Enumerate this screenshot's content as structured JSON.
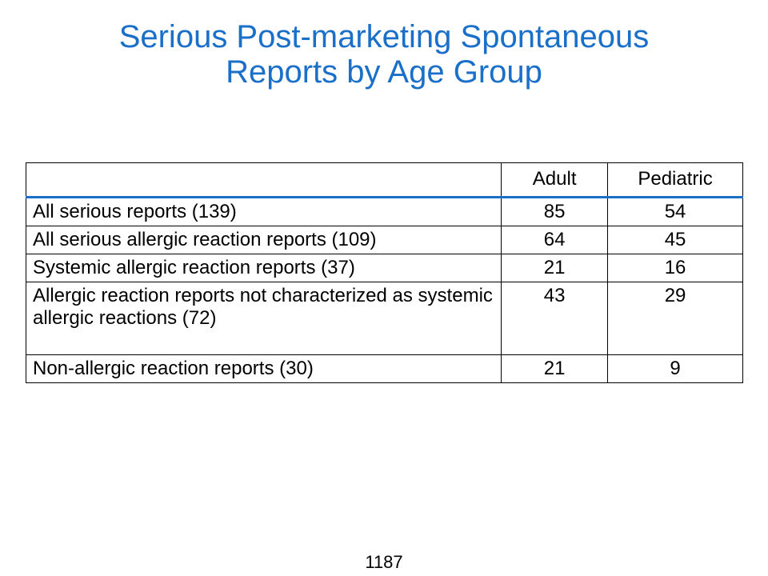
{
  "title": {
    "line1": "Serious Post-marketing Spontaneous",
    "line2": "Reports by Age Group"
  },
  "table": {
    "headers": [
      "",
      "Adult",
      "Pediatric"
    ],
    "rows": [
      {
        "label": "All serious reports (139)",
        "adult": "85",
        "pediatric": "54"
      },
      {
        "label": "All serious allergic reaction reports (109)",
        "adult": "64",
        "pediatric": "45"
      },
      {
        "label": "Systemic allergic reaction reports (37)",
        "adult": "21",
        "pediatric": "16"
      },
      {
        "label": "Allergic reaction reports not characterized as systemic allergic reactions (72)",
        "adult": "43",
        "pediatric": "29"
      },
      {
        "label": "Non-allergic reaction reports (30)",
        "adult": "21",
        "pediatric": "9"
      }
    ]
  },
  "page_number": "1187",
  "colors": {
    "title": "#1a6fc9",
    "header_rule": "#1a6fc9"
  }
}
